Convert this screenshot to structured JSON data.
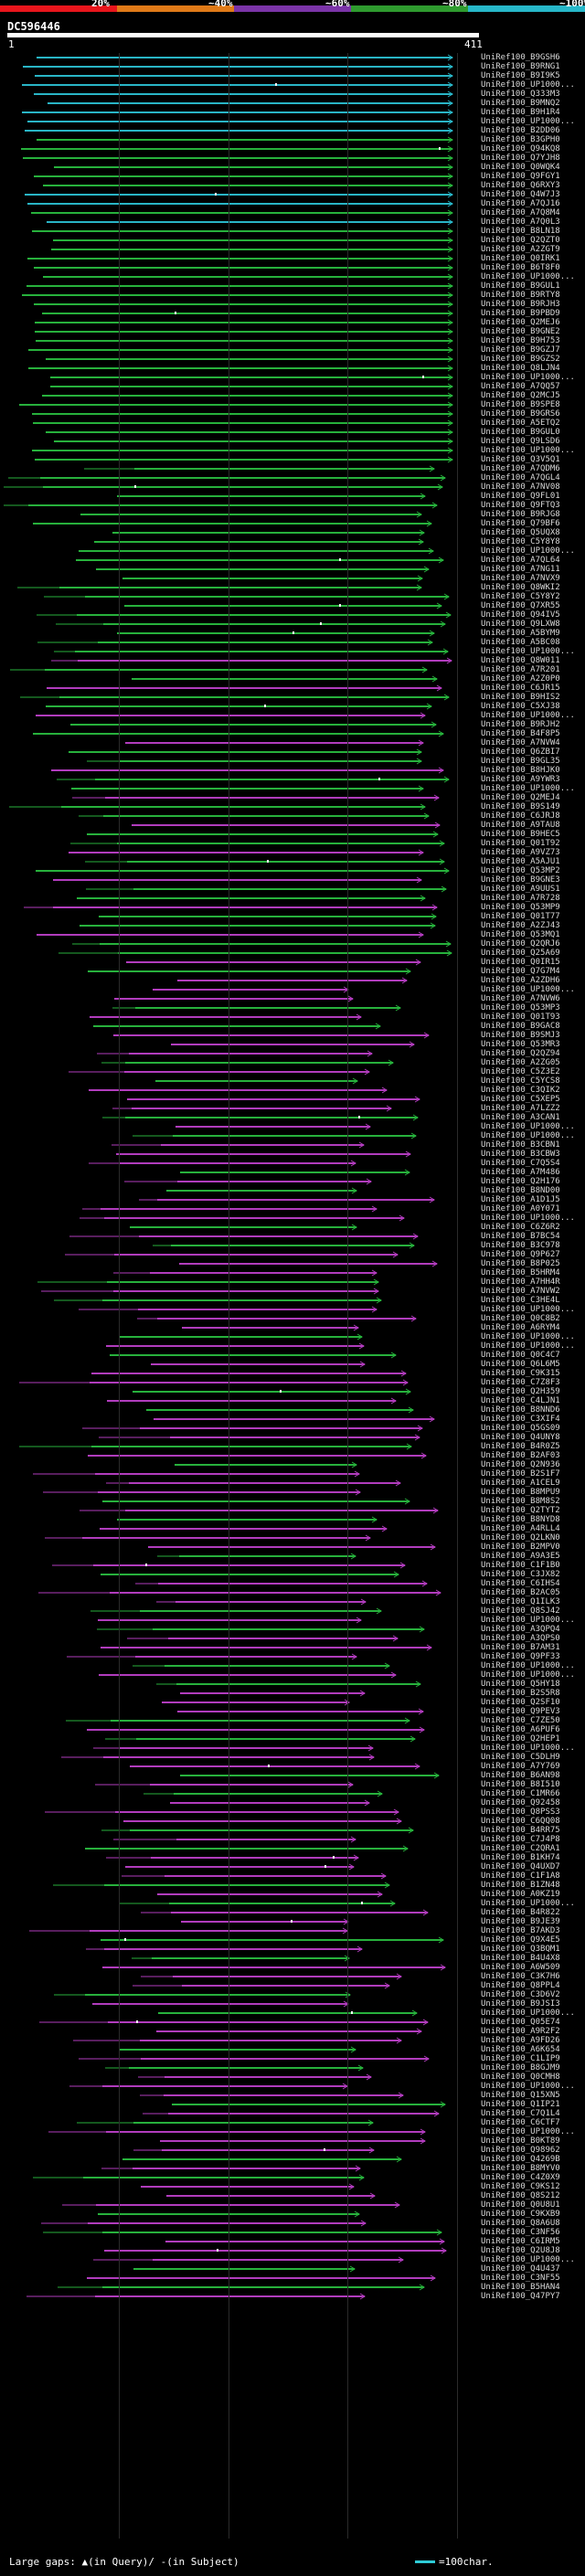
{
  "scale": {
    "labels": [
      "20%",
      "~40%",
      "~60%",
      "~80%",
      "~100%"
    ],
    "colors": [
      "#e8151c",
      "#e07a18",
      "#7b34a8",
      "#2f9b2f",
      "#27b7c9"
    ]
  },
  "query": {
    "name": "DC596446",
    "start": "1",
    "end": "411"
  },
  "colors": {
    "cyan": "#29b5c6",
    "green": "#27b13c",
    "magenta": "#b13cbd",
    "gap": "#f5f5f5"
  },
  "hits": [
    "UniRef100_B9GSH6",
    "UniRef100_B9RNG1",
    "UniRef100_B9I9K5",
    "UniRef100_UP1000...",
    "UniRef100_Q333M3",
    "UniRef100_B9MNQ2",
    "UniRef100_B9H1R4",
    "UniRef100_UP1000...",
    "UniRef100_B2DD06",
    "UniRef100_B3GPH0",
    "UniRef100_Q94KQ8",
    "UniRef100_Q7YJH8",
    "UniRef100_Q0WQK4",
    "UniRef100_Q9FGY1",
    "UniRef100_Q6RXY3",
    "UniRef100_Q4W7J3",
    "UniRef100_A7QJ16",
    "UniRef100_A7Q8M4",
    "UniRef100_A7Q0L3",
    "UniRef100_B8LN18",
    "UniRef100_Q2QZT0",
    "UniRef100_A2ZGT9",
    "UniRef100_Q0IRK1",
    "UniRef100_B6T8F0",
    "UniRef100_UP1000...",
    "UniRef100_B9GUL1",
    "UniRef100_B9RTY8",
    "UniRef100_B9RJH3",
    "UniRef100_B9PBD9",
    "UniRef100_Q2MEJ6",
    "UniRef100_B9GNE2",
    "UniRef100_B9H753",
    "UniRef100_B9GZJ7",
    "UniRef100_B9GZS2",
    "UniRef100_Q8LJN4",
    "UniRef100_UP1000...",
    "UniRef100_A7QQ57",
    "UniRef100_Q2MCJ5",
    "UniRef100_B9SPE8",
    "UniRef100_B9GRS6",
    "UniRef100_A5ETQ2",
    "UniRef100_B9GUL0",
    "UniRef100_Q9LSD6",
    "UniRef100_UP1000...",
    "UniRef100_Q3V5Q1",
    "UniRef100_A7QDM6",
    "UniRef100_A7QGL4",
    "UniRef100_A7NV08",
    "UniRef100_Q9FL01",
    "UniRef100_Q9FTQ3",
    "UniRef100_B9RJG8",
    "UniRef100_Q79BF6",
    "UniRef100_Q5UQX8",
    "UniRef100_C5Y8Y8",
    "UniRef100_UP1000...",
    "UniRef100_A7QL64",
    "UniRef100_A7NG11",
    "UniRef100_A7NVX9",
    "UniRef100_Q8WKI2",
    "UniRef100_C5Y8Y2",
    "UniRef100_Q7XR55",
    "UniRef100_Q94IV5",
    "UniRef100_Q9LXW8",
    "UniRef100_A5BYM9",
    "UniRef100_A5BC08",
    "UniRef100_UP1000...",
    "UniRef100_Q8W011",
    "UniRef100_A7R201",
    "UniRef100_A2Z0P0",
    "UniRef100_C6JR15",
    "UniRef100_B9HIS2",
    "UniRef100_C5XJ38",
    "UniRef100_UP1000...",
    "UniRef100_B9RJH2",
    "UniRef100_B4F8P5",
    "UniRef100_A7NVW4",
    "UniRef100_Q6ZBI7",
    "UniRef100_B9GL35",
    "UniRef100_B8HJK0",
    "UniRef100_A9YWR3",
    "UniRef100_UP1000...",
    "UniRef100_Q2MEJ4",
    "UniRef100_B9S149",
    "UniRef100_C6JRJ8",
    "UniRef100_A9TAU8",
    "UniRef100_B9HEC5",
    "UniRef100_Q01T92",
    "UniRef100_A9VZ73",
    "UniRef100_A5AJU1",
    "UniRef100_Q53MP2",
    "UniRef100_B9GNE3",
    "UniRef100_A9UUS1",
    "UniRef100_A7R728",
    "UniRef100_Q53MP9",
    "UniRef100_Q01T77",
    "UniRef100_A2ZJ43",
    "UniRef100_Q53MQ1",
    "UniRef100_Q2QRJ6",
    "UniRef100_Q25A69",
    "UniRef100_Q0IR15",
    "UniRef100_Q7G7M4",
    "UniRef100_A2ZDH6",
    "UniRef100_UP1000...",
    "UniRef100_A7NVW6",
    "UniRef100_Q53MP3",
    "UniRef100_Q01T93",
    "UniRef100_B9GAC8",
    "UniRef100_B9SMJ3",
    "UniRef100_Q53MR3",
    "UniRef100_Q2QZ94",
    "UniRef100_A2ZG05",
    "UniRef100_C5Z3E2",
    "UniRef100_C5YCS8",
    "UniRef100_C3QIK2",
    "UniRef100_C5XEP5",
    "UniRef100_A7LZZ2",
    "UniRef100_A3CAN1",
    "UniRef100_UP1000...",
    "UniRef100_UP1000...",
    "UniRef100_B3CBN1",
    "UniRef100_B3CBW3",
    "UniRef100_C7Q5S4",
    "UniRef100_A7M486",
    "UniRef100_Q2H176",
    "UniRef100_B8ND00",
    "UniRef100_A1D1J5",
    "UniRef100_A0Y071",
    "UniRef100_UP1000...",
    "UniRef100_C6Z6R2",
    "UniRef100_B7BC54",
    "UniRef100_B3C978",
    "UniRef100_Q9P627",
    "UniRef100_B8P025",
    "UniRef100_B5HRM4",
    "UniRef100_A7HH4R",
    "UniRef100_A7NVW2",
    "UniRef100_C3HE4L",
    "UniRef100_UP1000...",
    "UniRef100_Q0C8B2",
    "UniRef100_A6RYM4",
    "UniRef100_UP1000...",
    "UniRef100_UP1000...",
    "UniRef100_Q0C4C7",
    "UniRef100_Q6L6M5",
    "UniRef100_C9K315",
    "UniRef100_C7Z8F3",
    "UniRef100_Q2H359",
    "UniRef100_C4LJN1",
    "UniRef100_B8NND6",
    "UniRef100_C3XIF4",
    "UniRef100_Q5GS09",
    "UniRef100_Q4UNY8",
    "UniRef100_B4R0Z5",
    "UniRef100_B2AF03",
    "UniRef100_Q2N936",
    "UniRef100_B2S1F7",
    "UniRef100_A1CEL9",
    "UniRef100_B8MPU9",
    "UniRef100_B8M8S2",
    "UniRef100_Q2TYT2",
    "UniRef100_B8NYD8",
    "UniRef100_A4RLL4",
    "UniRef100_Q2LKN0",
    "UniRef100_B2MPV0",
    "UniRef100_A9A3E5",
    "UniRef100_C1F1B0",
    "UniRef100_C3JX82",
    "UniRef100_C6IHS4",
    "UniRef100_B2AC05",
    "UniRef100_Q1ILK3",
    "UniRef100_Q8SJ42",
    "UniRef100_UP1000...",
    "UniRef100_A3QPQ4",
    "UniRef100_A3QPS0",
    "UniRef100_B7AM31",
    "UniRef100_Q9PF33",
    "UniRef100_UP1000...",
    "UniRef100_UP1000...",
    "UniRef100_Q5HY18",
    "UniRef100_B2S5R8",
    "UniRef100_Q2SF10",
    "UniRef100_Q9PEV3",
    "UniRef100_C7ZE50",
    "UniRef100_A6PUF6",
    "UniRef100_Q2HEP1",
    "UniRef100_UP1000...",
    "UniRef100_C5DLH9",
    "UniRef100_A7Y769",
    "UniRef100_B6AN98",
    "UniRef100_B8I510",
    "UniRef100_C1MR66",
    "UniRef100_Q92458",
    "UniRef100_Q8PSS3",
    "UniRef100_C6QQ08",
    "UniRef100_B4RR75",
    "UniRef100_C7J4P8",
    "UniRef100_C2QRA1",
    "UniRef100_B1KH74",
    "UniRef100_Q4UXD7",
    "UniRef100_C1F1A8",
    "UniRef100_B1ZN48",
    "UniRef100_A0KZ19",
    "UniRef100_UP1000...",
    "UniRef100_B4R822",
    "UniRef100_B9JE39",
    "UniRef100_B7AKD3",
    "UniRef100_Q9X4E5",
    "UniRef100_Q3BQM1",
    "UniRef100_B4U4X8",
    "UniRef100_A6W509",
    "UniRef100_C3K7H6",
    "UniRef100_Q8PPL4",
    "UniRef100_C3D6V2",
    "UniRef100_B9JSI3",
    "UniRef100_UP1000...",
    "UniRef100_Q05E74",
    "UniRef100_A9R2F2",
    "UniRef100_A9FD26",
    "UniRef100_A6K654",
    "UniRef100_C1LIP9",
    "UniRef100_B8GJM9",
    "UniRef100_Q0CMH8",
    "UniRef100_UP1000...",
    "UniRef100_Q15XN5",
    "UniRef100_Q1IP21",
    "UniRef100_C7Q1L4",
    "UniRef100_C6CTF7",
    "UniRef100_UP1000...",
    "UniRef100_B0KT89",
    "UniRef100_Q98962",
    "UniRef100_Q4269B",
    "UniRef100_B8MYV0",
    "UniRef100_C4Z0X9",
    "UniRef100_C9KS12",
    "UniRef100_Q8S212",
    "UniRef100_Q0U8U1",
    "UniRef100_C9KXB9",
    "UniRef100_Q8A6U8",
    "UniRef100_C3NF56",
    "UniRef100_C6IRM5",
    "UniRef100_Q2U8J8",
    "UniRef100_UP1000...",
    "UniRef100_Q4U437",
    "UniRef100_C3NF55",
    "UniRef100_B5HAN4",
    "UniRef100_Q47PY7"
  ],
  "legend": {
    "gap_text": "Large gaps: ",
    "query_gap": "▲(in Query)",
    "subject_gap": "/ -(in Subject)",
    "unit": "=100char."
  }
}
